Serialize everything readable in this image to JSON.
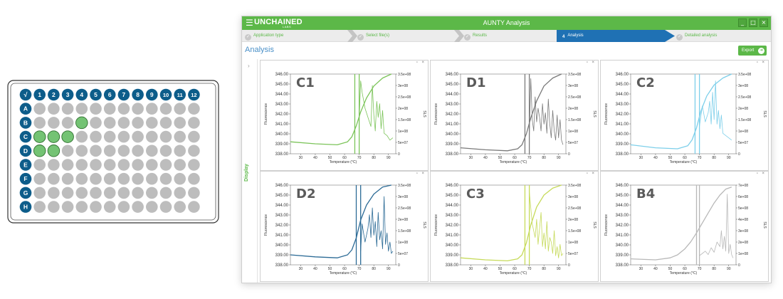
{
  "plate": {
    "corner_label": "√",
    "columns": [
      "1",
      "2",
      "3",
      "4",
      "5",
      "6",
      "7",
      "8",
      "9",
      "10",
      "11",
      "12"
    ],
    "rows": [
      "A",
      "B",
      "C",
      "D",
      "E",
      "F",
      "G",
      "H"
    ],
    "selected_wells": [
      "B4",
      "C1",
      "C2",
      "C3",
      "D1",
      "D2"
    ],
    "colors": {
      "header": "#0d5d8a",
      "well": "#bdbdbd",
      "selected": "#74c374"
    }
  },
  "app": {
    "menu_icon": "hamburger-menu-icon",
    "logo_text": "UNCHAINED",
    "logo_sub": "LABS",
    "title": "AUNTY Analysis",
    "window_buttons": [
      "_",
      "□",
      "×"
    ],
    "steps": [
      {
        "label": "Application type",
        "mark": "✓",
        "state": "done"
      },
      {
        "label": "Select file(s)",
        "mark": "✓",
        "state": "done"
      },
      {
        "label": "Results",
        "mark": "✓",
        "state": "done"
      },
      {
        "label": "Analysis",
        "mark": "4",
        "state": "active"
      },
      {
        "label": "Detailed analysis",
        "mark": "✓",
        "state": "todo"
      }
    ],
    "section_title": "Analysis",
    "export_label": "Export",
    "sidebar_label": "Display",
    "sidebar_arrow": "›",
    "panel_tools": "▫ ×",
    "accent": "#5cb848",
    "active_step_color": "#1f71b4"
  },
  "chart_data": [
    {
      "type": "line",
      "title": "C1",
      "color": "#7cc45a",
      "xlabel": "Temperature (°C)",
      "ylabel": "Fluorescence",
      "y2label": "SLS",
      "xlim": [
        23,
        95
      ],
      "xticks": [
        30,
        40,
        50,
        60,
        70,
        80,
        90
      ],
      "ylim": [
        338,
        346
      ],
      "yticks": [
        "338.00",
        "339.00",
        "340.00",
        "341.00",
        "342.00",
        "343.00",
        "344.00",
        "345.00",
        "346.00"
      ],
      "y2lim": [
        0,
        350000000
      ],
      "y2ticks": [
        "0",
        "5e+07",
        "1e+08",
        "1.5e+08",
        "2e+08",
        "2.5e+08",
        "3e+08",
        "3.5e+08"
      ],
      "vlines": [
        67,
        70
      ],
      "series": [
        {
          "role": "fluorescence",
          "x": [
            23,
            40,
            55,
            62,
            65,
            68,
            71,
            75,
            80,
            86,
            92
          ],
          "y": [
            339.2,
            339.0,
            338.9,
            339.2,
            339.7,
            340.8,
            342.2,
            343.6,
            344.8,
            345.6,
            346.0
          ]
        },
        {
          "role": "sls",
          "x": [
            70,
            71,
            72,
            74,
            76,
            78,
            79,
            80,
            81,
            82,
            83,
            84,
            85,
            86,
            87,
            89,
            91,
            93
          ],
          "y": [
            150000000,
            320000000,
            270000000,
            200000000,
            160000000,
            120000000,
            300000000,
            170000000,
            100000000,
            230000000,
            160000000,
            220000000,
            110000000,
            190000000,
            90000000,
            80000000,
            60000000,
            70000000
          ]
        }
      ]
    },
    {
      "type": "line",
      "title": "D1",
      "color": "#7a7a7a",
      "xlabel": "Temperature (°C)",
      "ylabel": "Fluorescence",
      "y2label": "SLS",
      "xlim": [
        23,
        95
      ],
      "xticks": [
        30,
        40,
        50,
        60,
        70,
        80,
        90
      ],
      "ylim": [
        338,
        346
      ],
      "yticks": [
        "338.00",
        "339.00",
        "340.00",
        "341.00",
        "342.00",
        "343.00",
        "344.00",
        "345.00",
        "346.00"
      ],
      "y2lim": [
        0,
        350000000
      ],
      "y2ticks": [
        "0",
        "5e+07",
        "1e+08",
        "1.5e+08",
        "2e+08",
        "2.5e+08",
        "3e+08",
        "3.5e+08"
      ],
      "vlines": [
        67,
        70
      ],
      "series": [
        {
          "role": "fluorescence",
          "x": [
            23,
            40,
            55,
            62,
            65,
            68,
            71,
            75,
            80,
            86,
            92
          ],
          "y": [
            338.6,
            338.4,
            338.3,
            338.5,
            338.9,
            340.0,
            341.6,
            343.3,
            344.8,
            345.6,
            346.0
          ]
        },
        {
          "role": "sls",
          "x": [
            70,
            71,
            72,
            73,
            74,
            75,
            76,
            77,
            78,
            79,
            80,
            81,
            82,
            83,
            84,
            85,
            86,
            87,
            88,
            89,
            90,
            91,
            92,
            93
          ],
          "y": [
            80000000,
            330000000,
            150000000,
            100000000,
            250000000,
            140000000,
            200000000,
            160000000,
            100000000,
            220000000,
            130000000,
            180000000,
            90000000,
            240000000,
            130000000,
            70000000,
            190000000,
            100000000,
            60000000,
            170000000,
            70000000,
            150000000,
            60000000,
            40000000
          ]
        }
      ]
    },
    {
      "type": "line",
      "title": "C2",
      "color": "#7dcfea",
      "xlabel": "Temperature (°C)",
      "ylabel": "Fluorescence",
      "y2label": "SLS",
      "xlim": [
        23,
        95
      ],
      "xticks": [
        30,
        40,
        50,
        60,
        70,
        80,
        90
      ],
      "ylim": [
        338,
        346
      ],
      "yticks": [
        "338.00",
        "339.00",
        "340.00",
        "341.00",
        "342.00",
        "343.00",
        "344.00",
        "345.00",
        "346.00"
      ],
      "y2lim": [
        0,
        350000000
      ],
      "y2ticks": [
        "0",
        "5e+07",
        "1e+08",
        "1.5e+08",
        "2e+08",
        "2.5e+08",
        "3e+08",
        "3.5e+08"
      ],
      "vlines": [
        67,
        70
      ],
      "series": [
        {
          "role": "fluorescence",
          "x": [
            23,
            40,
            55,
            62,
            65,
            68,
            71,
            75,
            80,
            86,
            92
          ],
          "y": [
            338.9,
            338.6,
            338.5,
            338.8,
            339.4,
            340.6,
            342.3,
            343.8,
            344.9,
            345.6,
            346.0
          ]
        },
        {
          "role": "sls",
          "x": [
            70,
            72,
            74,
            76,
            77,
            78,
            79,
            80,
            81,
            82,
            83,
            84,
            85,
            86,
            88,
            90,
            92
          ],
          "y": [
            120000000,
            210000000,
            140000000,
            180000000,
            230000000,
            130000000,
            270000000,
            150000000,
            320000000,
            130000000,
            190000000,
            110000000,
            170000000,
            90000000,
            80000000,
            70000000,
            60000000
          ]
        }
      ]
    },
    {
      "type": "line",
      "title": "D2",
      "color": "#2c6b96",
      "xlabel": "Temperature (°C)",
      "ylabel": "Fluorescence",
      "y2label": "SLS",
      "xlim": [
        23,
        95
      ],
      "xticks": [
        30,
        40,
        50,
        60,
        70,
        80,
        90
      ],
      "ylim": [
        338,
        346
      ],
      "yticks": [
        "338.00",
        "339.00",
        "340.00",
        "341.00",
        "342.00",
        "343.00",
        "344.00",
        "345.00",
        "346.00"
      ],
      "y2lim": [
        0,
        350000000
      ],
      "y2ticks": [
        "0",
        "5e+07",
        "1e+08",
        "1.5e+08",
        "2e+08",
        "2.5e+08",
        "3e+08",
        "3.5e+08"
      ],
      "vlines": [
        68,
        71
      ],
      "series": [
        {
          "role": "fluorescence",
          "x": [
            23,
            40,
            55,
            62,
            65,
            68,
            71,
            75,
            80,
            86,
            92
          ],
          "y": [
            339.0,
            338.8,
            338.7,
            339.0,
            339.5,
            340.7,
            342.5,
            344.0,
            345.1,
            345.8,
            346.0
          ]
        },
        {
          "role": "sls",
          "x": [
            71,
            72,
            74,
            76,
            77,
            78,
            79,
            80,
            81,
            82,
            83,
            84,
            85,
            86,
            87,
            88,
            89,
            90,
            91,
            92,
            93
          ],
          "y": [
            60000000,
            180000000,
            100000000,
            160000000,
            220000000,
            120000000,
            250000000,
            130000000,
            190000000,
            80000000,
            230000000,
            110000000,
            150000000,
            70000000,
            300000000,
            90000000,
            140000000,
            60000000,
            100000000,
            50000000,
            60000000
          ]
        }
      ]
    },
    {
      "type": "line",
      "title": "C3",
      "color": "#c6da5a",
      "xlabel": "Temperature (°C)",
      "ylabel": "Fluorescence",
      "y2label": "SLS",
      "xlim": [
        23,
        95
      ],
      "xticks": [
        30,
        40,
        50,
        60,
        70,
        80,
        90
      ],
      "ylim": [
        338,
        346
      ],
      "yticks": [
        "338.00",
        "339.00",
        "340.00",
        "341.00",
        "342.00",
        "343.00",
        "344.00",
        "345.00",
        "346.00"
      ],
      "y2lim": [
        0,
        350000000
      ],
      "y2ticks": [
        "0",
        "5e+07",
        "1e+08",
        "1.5e+08",
        "2e+08",
        "2.5e+08",
        "3e+08",
        "3.5e+08"
      ],
      "vlines": [
        67,
        70
      ],
      "series": [
        {
          "role": "fluorescence",
          "x": [
            23,
            40,
            55,
            62,
            65,
            68,
            71,
            75,
            80,
            86,
            92
          ],
          "y": [
            338.7,
            338.5,
            338.4,
            338.6,
            339.0,
            340.2,
            342.0,
            343.8,
            345.0,
            345.7,
            346.0
          ]
        },
        {
          "role": "sls",
          "x": [
            70,
            71,
            72,
            74,
            75,
            76,
            77,
            78,
            79,
            80,
            81,
            82,
            83,
            84,
            85,
            86,
            87,
            88,
            89,
            90,
            91,
            92,
            93
          ],
          "y": [
            320000000,
            250000000,
            180000000,
            120000000,
            200000000,
            90000000,
            160000000,
            230000000,
            80000000,
            140000000,
            70000000,
            190000000,
            60000000,
            120000000,
            100000000,
            50000000,
            150000000,
            40000000,
            80000000,
            30000000,
            90000000,
            40000000,
            50000000
          ]
        }
      ]
    },
    {
      "type": "line",
      "title": "B4",
      "color": "#b8b8b8",
      "xlabel": "Temperature (°C)",
      "ylabel": "Fluorescence",
      "y2label": "SLS",
      "xlim": [
        23,
        95
      ],
      "xticks": [
        30,
        40,
        50,
        60,
        70,
        80,
        90
      ],
      "ylim": [
        338,
        346
      ],
      "yticks": [
        "338.00",
        "339.00",
        "340.00",
        "341.00",
        "342.00",
        "343.00",
        "344.00",
        "345.00",
        "346.00"
      ],
      "y2lim": [
        0,
        700000000
      ],
      "y2ticks": [
        "0",
        "1e+08",
        "2e+08",
        "3e+08",
        "4e+08",
        "5e+08",
        "6e+08",
        "7e+08"
      ],
      "vlines": [
        68,
        70
      ],
      "series": [
        {
          "role": "fluorescence",
          "x": [
            23,
            40,
            50,
            55,
            60,
            64,
            68,
            72,
            76,
            80,
            84,
            88,
            92
          ],
          "y": [
            338.6,
            338.5,
            338.7,
            339.0,
            339.6,
            340.3,
            341.2,
            342.2,
            343.2,
            344.2,
            345.0,
            345.6,
            345.8
          ]
        },
        {
          "role": "sls",
          "x": [
            70,
            72,
            74,
            76,
            78,
            80,
            82,
            84,
            85,
            86,
            87,
            88,
            89,
            90,
            91,
            92,
            93
          ],
          "y": [
            80000000,
            100000000,
            120000000,
            90000000,
            150000000,
            110000000,
            200000000,
            160000000,
            300000000,
            140000000,
            250000000,
            120000000,
            620000000,
            100000000,
            180000000,
            90000000,
            60000000
          ]
        }
      ]
    }
  ]
}
